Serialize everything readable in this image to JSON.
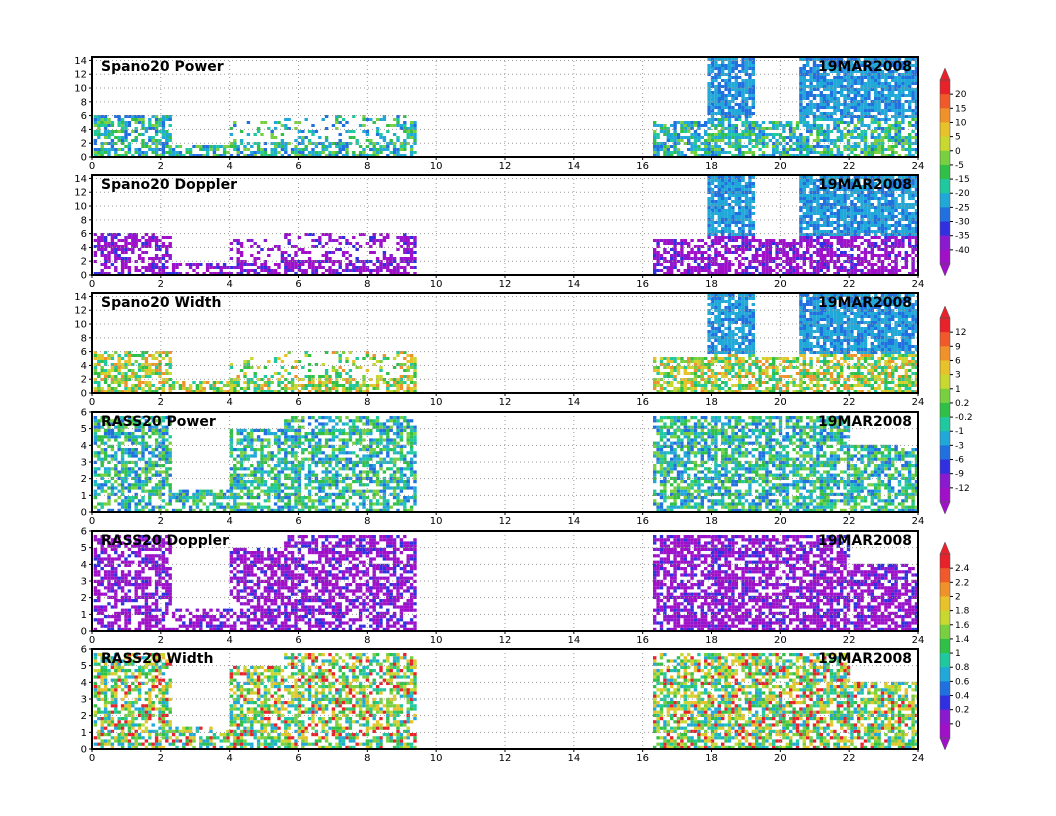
{
  "figure": {
    "date_label": "19MAR2008",
    "x_axis": {
      "min": 0,
      "max": 24,
      "ticks": [
        0,
        2,
        4,
        6,
        8,
        10,
        12,
        14,
        16,
        18,
        20,
        22,
        24
      ]
    }
  },
  "panels": [
    {
      "title": "Spano20  Power",
      "y_ticks": [
        0,
        2,
        4,
        6,
        8,
        10,
        12,
        14
      ],
      "ylim": [
        0,
        14.5
      ],
      "colorbar": 0
    },
    {
      "title": "Spano20  Doppler",
      "y_ticks": [
        0,
        2,
        4,
        6,
        8,
        10,
        12,
        14
      ],
      "ylim": [
        0,
        14.5
      ],
      "colorbar": 0
    },
    {
      "title": "Spano20  Width",
      "y_ticks": [
        0,
        2,
        4,
        6,
        8,
        10,
        12,
        14
      ],
      "ylim": [
        0,
        14.5
      ],
      "colorbar": 1
    },
    {
      "title": "RASS20  Power",
      "y_ticks": [
        0,
        1,
        2,
        3,
        4,
        5,
        6
      ],
      "ylim": [
        0,
        6
      ],
      "colorbar": 1
    },
    {
      "title": "RASS20  Doppler",
      "y_ticks": [
        0,
        1,
        2,
        3,
        4,
        5,
        6
      ],
      "ylim": [
        0,
        6
      ],
      "colorbar": 2
    },
    {
      "title": "RASS20  Width",
      "y_ticks": [
        0,
        1,
        2,
        3,
        4,
        5,
        6
      ],
      "ylim": [
        0,
        6
      ],
      "colorbar": 3
    }
  ],
  "colorbars": [
    {
      "labels": [
        "20",
        "15",
        "10",
        "5",
        "0",
        "-5",
        "-15",
        "-20",
        "-25",
        "-30",
        "-35",
        "-40"
      ],
      "colors": [
        "#e8222a",
        "#f05a2a",
        "#f0922a",
        "#e8c22a",
        "#c8d830",
        "#78d040",
        "#30c048",
        "#20c8a0",
        "#20a8d8",
        "#2070e0",
        "#3030e0",
        "#8a1ad0",
        "#a010c8"
      ]
    },
    {
      "labels": [
        "12",
        "9",
        "6",
        "3",
        "1",
        "0.2",
        "-0.2",
        "-1",
        "-3",
        "-6",
        "-9",
        "-12"
      ],
      "colors": [
        "#e8222a",
        "#f05a2a",
        "#f0922a",
        "#e8c22a",
        "#c8d830",
        "#78d040",
        "#30c048",
        "#20c8a0",
        "#20a8d8",
        "#2070e0",
        "#3030e0",
        "#8a1ad0",
        "#a010c8"
      ]
    },
    {
      "labels": [
        "2.4",
        "2.2",
        "2",
        "1.8",
        "1.6",
        "1.4",
        "1",
        "0.8",
        "0.6",
        "0.4",
        "0.2",
        "0"
      ],
      "colors": [
        "#e8222a",
        "#f05a2a",
        "#f0922a",
        "#e8c22a",
        "#c8d830",
        "#78d040",
        "#30c048",
        "#20c8a0",
        "#20a8d8",
        "#2070e0",
        "#3030e0",
        "#8a1ad0",
        "#a010c8"
      ]
    },
    {
      "labels": [],
      "colors": [
        "#e8222a",
        "#f05a2a",
        "#f0922a",
        "#e8c22a",
        "#c8d830",
        "#78d040",
        "#30c048",
        "#20c8a0",
        "#20a8d8",
        "#2070e0",
        "#3030e0",
        "#8a1ad0",
        "#a010c8"
      ]
    }
  ],
  "chart_data": [
    {
      "type": "heatmap",
      "title": "Spano20  Power",
      "date": "19MAR2008",
      "xlim": [
        0,
        24
      ],
      "ylim": [
        0,
        14.5
      ],
      "colorbar_range": [
        -40,
        20
      ],
      "data_segments": [
        {
          "x_range": [
            0,
            9.4
          ],
          "y_range": [
            0,
            6.5
          ],
          "dominant_color": "cyan/teal with green near surface"
        },
        {
          "x_range": [
            16.3,
            24
          ],
          "y_range": [
            0,
            14.5
          ],
          "dominant_color": "blue/cyan above, green/cyan below 4"
        }
      ]
    },
    {
      "type": "heatmap",
      "title": "Spano20  Doppler",
      "date": "19MAR2008",
      "xlim": [
        0,
        24
      ],
      "ylim": [
        0,
        14.5
      ],
      "data_segments": [
        {
          "x_range": [
            0,
            9.4
          ],
          "y_range": [
            0,
            6.5
          ],
          "dominant_color": "purple"
        },
        {
          "x_range": [
            16.3,
            24
          ],
          "y_range": [
            0,
            14.5
          ],
          "dominant_color": "purple below 6, blue/cyan above"
        }
      ]
    },
    {
      "type": "heatmap",
      "title": "Spano20  Width",
      "date": "19MAR2008",
      "xlim": [
        0,
        24
      ],
      "ylim": [
        0,
        14.5
      ],
      "colorbar_range": [
        -12,
        12
      ],
      "data_segments": [
        {
          "x_range": [
            0,
            9.4
          ],
          "y_range": [
            0,
            6.5
          ],
          "dominant_color": "green/yellow mixed"
        },
        {
          "x_range": [
            16.3,
            24
          ],
          "y_range": [
            0,
            14.5
          ],
          "dominant_color": "green/yellow below 6, blue/cyan above"
        }
      ]
    },
    {
      "type": "heatmap",
      "title": "RASS20  Power",
      "date": "19MAR2008",
      "xlim": [
        0,
        24
      ],
      "ylim": [
        0,
        6
      ],
      "data_segments": [
        {
          "x_range": [
            0,
            9.4
          ],
          "y_range": [
            0,
            6
          ],
          "dominant_color": "green/cyan"
        },
        {
          "x_range": [
            16.3,
            24
          ],
          "y_range": [
            0,
            6
          ],
          "dominant_color": "green/cyan with blue"
        }
      ]
    },
    {
      "type": "heatmap",
      "title": "RASS20  Doppler",
      "date": "19MAR2008",
      "xlim": [
        0,
        24
      ],
      "ylim": [
        0,
        6
      ],
      "colorbar_range": [
        0,
        2.4
      ],
      "data_segments": [
        {
          "x_range": [
            0,
            9.4
          ],
          "y_range": [
            0,
            6
          ],
          "dominant_color": "purple"
        },
        {
          "x_range": [
            16.3,
            24
          ],
          "y_range": [
            0,
            6
          ],
          "dominant_color": "purple"
        }
      ]
    },
    {
      "type": "heatmap",
      "title": "RASS20  Width",
      "date": "19MAR2008",
      "xlim": [
        0,
        24
      ],
      "ylim": [
        0,
        6
      ],
      "data_segments": [
        {
          "x_range": [
            0,
            9.4
          ],
          "y_range": [
            0,
            6
          ],
          "dominant_color": "green/yellow/cyan"
        },
        {
          "x_range": [
            16.3,
            24
          ],
          "y_range": [
            0,
            6
          ],
          "dominant_color": "green/yellow/cyan with red"
        }
      ]
    }
  ]
}
